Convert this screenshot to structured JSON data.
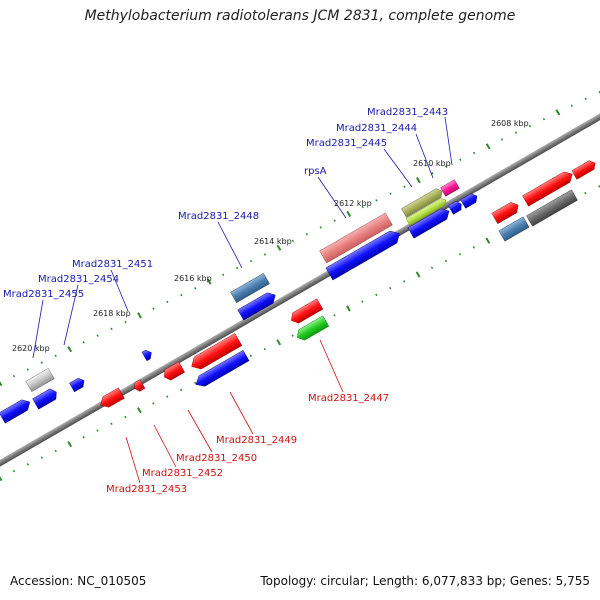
{
  "title": "Methylobacterium radiotolerans JCM 2831, complete genome",
  "footer": {
    "accession": "Accession: NC_010505",
    "summary": "Topology: circular; Length: 6,077,833 bp; Genes: 5,755"
  },
  "colors": {
    "backbone": "#808080",
    "tick": "#2e8b2e",
    "ruler_label": "#222222",
    "forward_label": "#1a1aaa",
    "reverse_label": "#cc1111"
  },
  "ruler": [
    {
      "label": "2608 kbp",
      "kbp": 2608
    },
    {
      "label": "2610 kbp",
      "kbp": 2610
    },
    {
      "label": "2612 kbp",
      "kbp": 2612
    },
    {
      "label": "2614 kbp",
      "kbp": 2614
    },
    {
      "label": "2616 kbp",
      "kbp": 2616
    },
    {
      "label": "2618 kbp",
      "kbp": 2618
    },
    {
      "label": "2620 kbp",
      "kbp": 2620
    }
  ],
  "forward_labels": [
    {
      "text": "Mrad2831_2443"
    },
    {
      "text": "Mrad2831_2444"
    },
    {
      "text": "Mrad2831_2445"
    },
    {
      "text": "rpsA"
    },
    {
      "text": "Mrad2831_2448"
    },
    {
      "text": "Mrad2831_2451"
    },
    {
      "text": "Mrad2831_2454"
    },
    {
      "text": "Mrad2831_2455"
    }
  ],
  "reverse_labels": [
    {
      "text": "Mrad2831_2447"
    },
    {
      "text": "Mrad2831_2449"
    },
    {
      "text": "Mrad2831_2450"
    },
    {
      "text": "Mrad2831_2452"
    },
    {
      "text": "Mrad2831_2453"
    }
  ]
}
